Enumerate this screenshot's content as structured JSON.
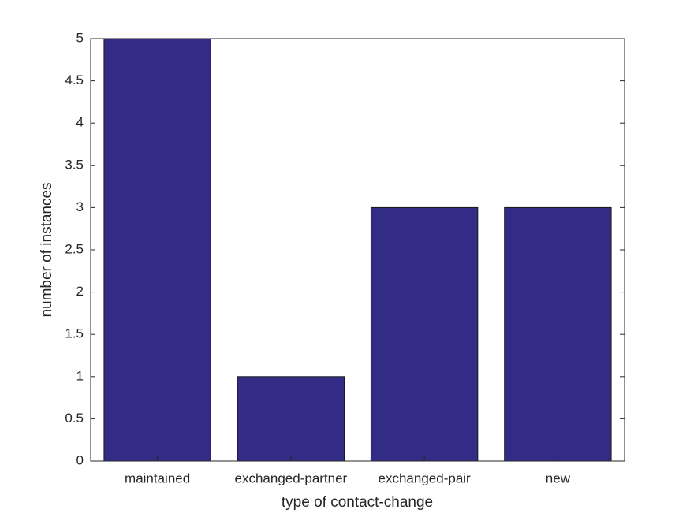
{
  "chart_data": {
    "type": "bar",
    "x_label": "type of contact-change",
    "y_label": "number of instances",
    "categories": [
      "maintained",
      "exchanged-partner",
      "exchanged-pair",
      "new"
    ],
    "values": [
      5,
      1,
      3,
      3
    ],
    "color": "#332c87",
    "ylim": [
      0,
      5
    ],
    "yticks": [
      0,
      0.5,
      1,
      1.5,
      2,
      2.5,
      3,
      3.5,
      4,
      4.5,
      5
    ],
    "grid": false
  }
}
